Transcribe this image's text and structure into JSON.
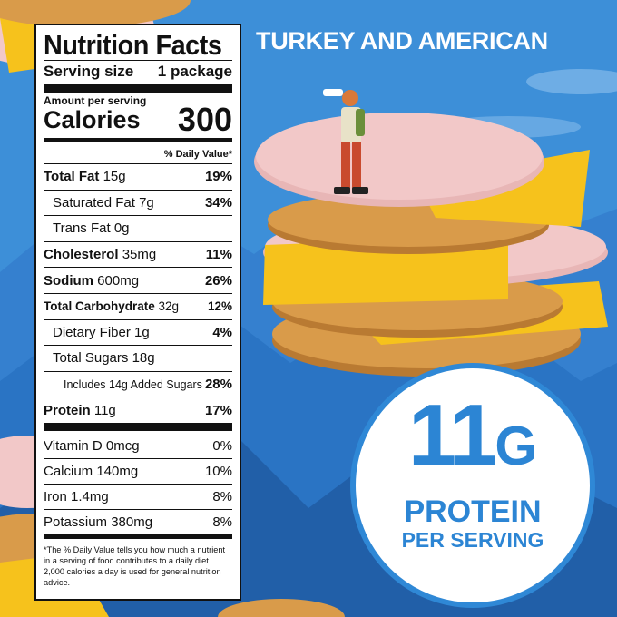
{
  "headline": "TURKEY AND AMERICAN",
  "nutrition": {
    "title": "Nutrition Facts",
    "serving_label": "Serving size",
    "serving_value": "1 package",
    "amount_per_serving": "Amount per serving",
    "calories_label": "Calories",
    "calories_value": "300",
    "daily_value_header": "% Daily Value*",
    "rows": [
      {
        "name": "Total Fat",
        "amount": "15g",
        "pct": "19%"
      },
      {
        "name": "Saturated Fat",
        "amount": "7g",
        "pct": "34%"
      },
      {
        "name": "Trans Fat",
        "amount": "0g",
        "pct": ""
      },
      {
        "name": "Cholesterol",
        "amount": "35mg",
        "pct": "11%"
      },
      {
        "name": "Sodium",
        "amount": "600mg",
        "pct": "26%"
      },
      {
        "name": "Total Carbohydrate",
        "amount": "32g",
        "pct": "12%"
      },
      {
        "name": "Dietary Fiber",
        "amount": "1g",
        "pct": "4%"
      },
      {
        "name": "Total Sugars",
        "amount": "18g",
        "pct": ""
      },
      {
        "name": "Includes 14g Added Sugars",
        "amount": "",
        "pct": "28%"
      },
      {
        "name": "Protein",
        "amount": "11g",
        "pct": "17%"
      }
    ],
    "vitamins": [
      {
        "name": "Vitamin D 0mcg",
        "pct": "0%"
      },
      {
        "name": "Calcium 140mg",
        "pct": "10%"
      },
      {
        "name": "Iron 1.4mg",
        "pct": "8%"
      },
      {
        "name": "Potassium 380mg",
        "pct": "8%"
      }
    ],
    "footnote": "*The % Daily Value tells you how much a nutrient in a serving of food contributes to a daily diet. 2,000 calories a day is used for general nutrition advice."
  },
  "badge": {
    "number": "11",
    "unit": "G",
    "line1": "PROTEIN",
    "line2": "PER SERVING"
  },
  "colors": {
    "sky": "#3d8fd8",
    "mountain": "#2a74c4",
    "badge_blue": "#2c85d4",
    "cheese": "#f6c21c",
    "turkey": "#f2c8c8",
    "cracker": "#d99b4a"
  }
}
